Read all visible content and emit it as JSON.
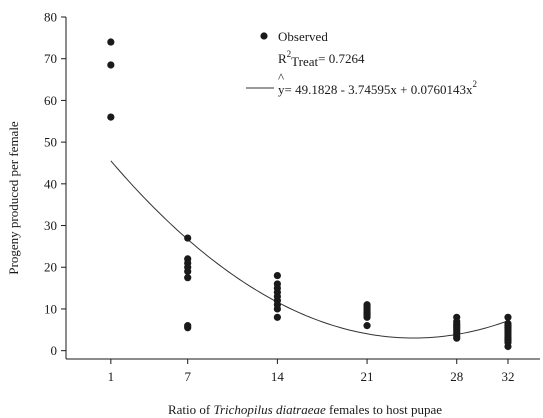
{
  "chart_data": {
    "type": "scatter",
    "xlabel_prefix": "Ratio of ",
    "xlabel_italic": "Trichopilus diatraeae",
    "xlabel_suffix": " females to host pupae",
    "ylabel": "Progeny produced per female",
    "x_ticks": [
      1,
      7,
      14,
      21,
      28,
      32
    ],
    "y_ticks": [
      0,
      10,
      20,
      30,
      40,
      50,
      60,
      70,
      80
    ],
    "xlim": [
      -2.5,
      34.5
    ],
    "ylim": [
      -2,
      80
    ],
    "grid": false,
    "legend_position": "top-right",
    "observed": {
      "label": "Observed",
      "color": "#1a1a1a",
      "points": [
        {
          "x": 1,
          "y": 74
        },
        {
          "x": 1,
          "y": 68.5
        },
        {
          "x": 1,
          "y": 56
        },
        {
          "x": 7,
          "y": 27
        },
        {
          "x": 7,
          "y": 22
        },
        {
          "x": 7,
          "y": 21
        },
        {
          "x": 7,
          "y": 20
        },
        {
          "x": 7,
          "y": 19
        },
        {
          "x": 7,
          "y": 17.5
        },
        {
          "x": 7,
          "y": 6
        },
        {
          "x": 7,
          "y": 5.5
        },
        {
          "x": 14,
          "y": 18
        },
        {
          "x": 14,
          "y": 16
        },
        {
          "x": 14,
          "y": 15
        },
        {
          "x": 14,
          "y": 14
        },
        {
          "x": 14,
          "y": 13
        },
        {
          "x": 14,
          "y": 12
        },
        {
          "x": 14,
          "y": 11
        },
        {
          "x": 14,
          "y": 10
        },
        {
          "x": 14,
          "y": 8
        },
        {
          "x": 21,
          "y": 11
        },
        {
          "x": 21,
          "y": 10.5
        },
        {
          "x": 21,
          "y": 10
        },
        {
          "x": 21,
          "y": 9.5
        },
        {
          "x": 21,
          "y": 9
        },
        {
          "x": 21,
          "y": 8.5
        },
        {
          "x": 21,
          "y": 8
        },
        {
          "x": 21,
          "y": 6
        },
        {
          "x": 28,
          "y": 8
        },
        {
          "x": 28,
          "y": 7
        },
        {
          "x": 28,
          "y": 6.5
        },
        {
          "x": 28,
          "y": 6
        },
        {
          "x": 28,
          "y": 5.5
        },
        {
          "x": 28,
          "y": 5
        },
        {
          "x": 28,
          "y": 4.5
        },
        {
          "x": 28,
          "y": 4
        },
        {
          "x": 28,
          "y": 3.5
        },
        {
          "x": 28,
          "y": 3
        },
        {
          "x": 32,
          "y": 8
        },
        {
          "x": 32,
          "y": 6.5
        },
        {
          "x": 32,
          "y": 6
        },
        {
          "x": 32,
          "y": 5.5
        },
        {
          "x": 32,
          "y": 5
        },
        {
          "x": 32,
          "y": 4.5
        },
        {
          "x": 32,
          "y": 4
        },
        {
          "x": 32,
          "y": 3.5
        },
        {
          "x": 32,
          "y": 3
        },
        {
          "x": 32,
          "y": 2.5
        },
        {
          "x": 32,
          "y": 2
        },
        {
          "x": 32,
          "y": 1
        }
      ]
    },
    "r2": {
      "prefix": "R",
      "superscript": "2",
      "subscript": "Treat",
      "value_text": "= 0.7264"
    },
    "fit": {
      "hat": "^",
      "equation_main": "y= 49.1828 - 3.74595x + 0.0760143x",
      "equation_superscript": "2",
      "coefficients": {
        "a": 49.1828,
        "b": -3.74595,
        "c": 0.0760143
      },
      "x_range": [
        1,
        32
      ]
    }
  }
}
